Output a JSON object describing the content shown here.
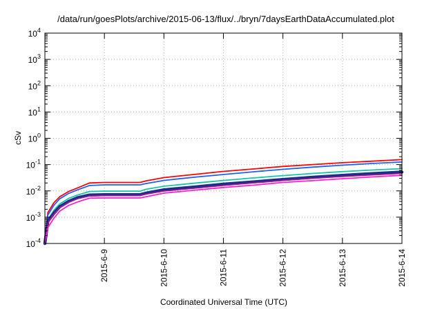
{
  "chart_data": {
    "type": "line",
    "title": "/data/run/goesPlots/archive/2015-06-13/flux/../bryn/7daysEarthDataAccumulated.plot",
    "xlabel": "Coordinated Universal Time (UTC)",
    "ylabel": "cSv",
    "xlim": [
      "2015-06-08T00:00",
      "2015-06-14T00:00"
    ],
    "ylim": [
      0.0001,
      10000
    ],
    "yscale": "log",
    "grid": true,
    "x_ticks": [
      "2015-6-9",
      "2015-6-10",
      "2015-6-11",
      "2015-6-12",
      "2015-6-13",
      "2015-6-14"
    ],
    "y_ticks": [
      {
        "base": "10",
        "exp": "-4",
        "value": 0.0001
      },
      {
        "base": "10",
        "exp": "-3",
        "value": 0.001
      },
      {
        "base": "10",
        "exp": "-2",
        "value": 0.01
      },
      {
        "base": "10",
        "exp": "-1",
        "value": 0.1
      },
      {
        "base": "10",
        "exp": "0",
        "value": 1
      },
      {
        "base": "10",
        "exp": "1",
        "value": 10
      },
      {
        "base": "10",
        "exp": "2",
        "value": 100
      },
      {
        "base": "10",
        "exp": "3",
        "value": 1000
      },
      {
        "base": "10",
        "exp": "4",
        "value": 10000
      }
    ],
    "x": [
      "2015-06-08T00:00",
      "2015-06-08T01:12",
      "2015-06-08T03:36",
      "2015-06-08T06:00",
      "2015-06-08T09:36",
      "2015-06-08T13:12",
      "2015-06-08T18:00",
      "2015-06-09T00:00",
      "2015-06-09T07:12",
      "2015-06-09T14:24",
      "2015-06-09T16:48",
      "2015-06-10T00:00",
      "2015-06-10T12:00",
      "2015-06-11T00:00",
      "2015-06-11T12:00",
      "2015-06-12T00:00",
      "2015-06-12T12:00",
      "2015-06-13T00:00",
      "2015-06-13T12:00",
      "2015-06-14T00:00"
    ],
    "series": [
      {
        "color": "#ff0000",
        "width": 1.8,
        "values": [
          0.0001,
          0.0015,
          0.0035,
          0.006,
          0.0095,
          0.013,
          0.02,
          0.021,
          0.021,
          0.021,
          0.024,
          0.032,
          0.042,
          0.055,
          0.068,
          0.085,
          0.1,
          0.118,
          0.135,
          0.155
        ]
      },
      {
        "color": "#1a5fff",
        "width": 1.8,
        "values": [
          0.0001,
          0.0012,
          0.0028,
          0.005,
          0.008,
          0.011,
          0.016,
          0.017,
          0.017,
          0.017,
          0.019,
          0.025,
          0.033,
          0.042,
          0.053,
          0.066,
          0.08,
          0.095,
          0.11,
          0.125
        ]
      },
      {
        "color": "#11c4a8",
        "width": 1.8,
        "values": [
          0.0001,
          0.0008,
          0.0018,
          0.0032,
          0.0052,
          0.007,
          0.0095,
          0.0098,
          0.0098,
          0.0098,
          0.0115,
          0.015,
          0.0195,
          0.025,
          0.031,
          0.038,
          0.046,
          0.054,
          0.062,
          0.07
        ]
      },
      {
        "color": "#1b2e8a",
        "width": 4.5,
        "values": [
          0.0001,
          0.0007,
          0.0014,
          0.0025,
          0.004,
          0.0055,
          0.007,
          0.0072,
          0.0072,
          0.0072,
          0.0082,
          0.011,
          0.014,
          0.018,
          0.022,
          0.027,
          0.033,
          0.039,
          0.045,
          0.052
        ]
      },
      {
        "color": "#b01090",
        "width": 1.5,
        "values": [
          0.0001,
          0.0006,
          0.0013,
          0.0023,
          0.0037,
          0.005,
          0.0064,
          0.0066,
          0.0066,
          0.0066,
          0.0075,
          0.0098,
          0.0125,
          0.016,
          0.02,
          0.025,
          0.03,
          0.035,
          0.04,
          0.046
        ]
      },
      {
        "color": "#ff1fd0",
        "width": 1.8,
        "values": [
          0.0001,
          0.0004,
          0.0009,
          0.0017,
          0.0028,
          0.0038,
          0.0053,
          0.0054,
          0.0054,
          0.0054,
          0.006,
          0.0082,
          0.0105,
          0.0135,
          0.0165,
          0.021,
          0.0245,
          0.029,
          0.034,
          0.039
        ]
      }
    ]
  }
}
